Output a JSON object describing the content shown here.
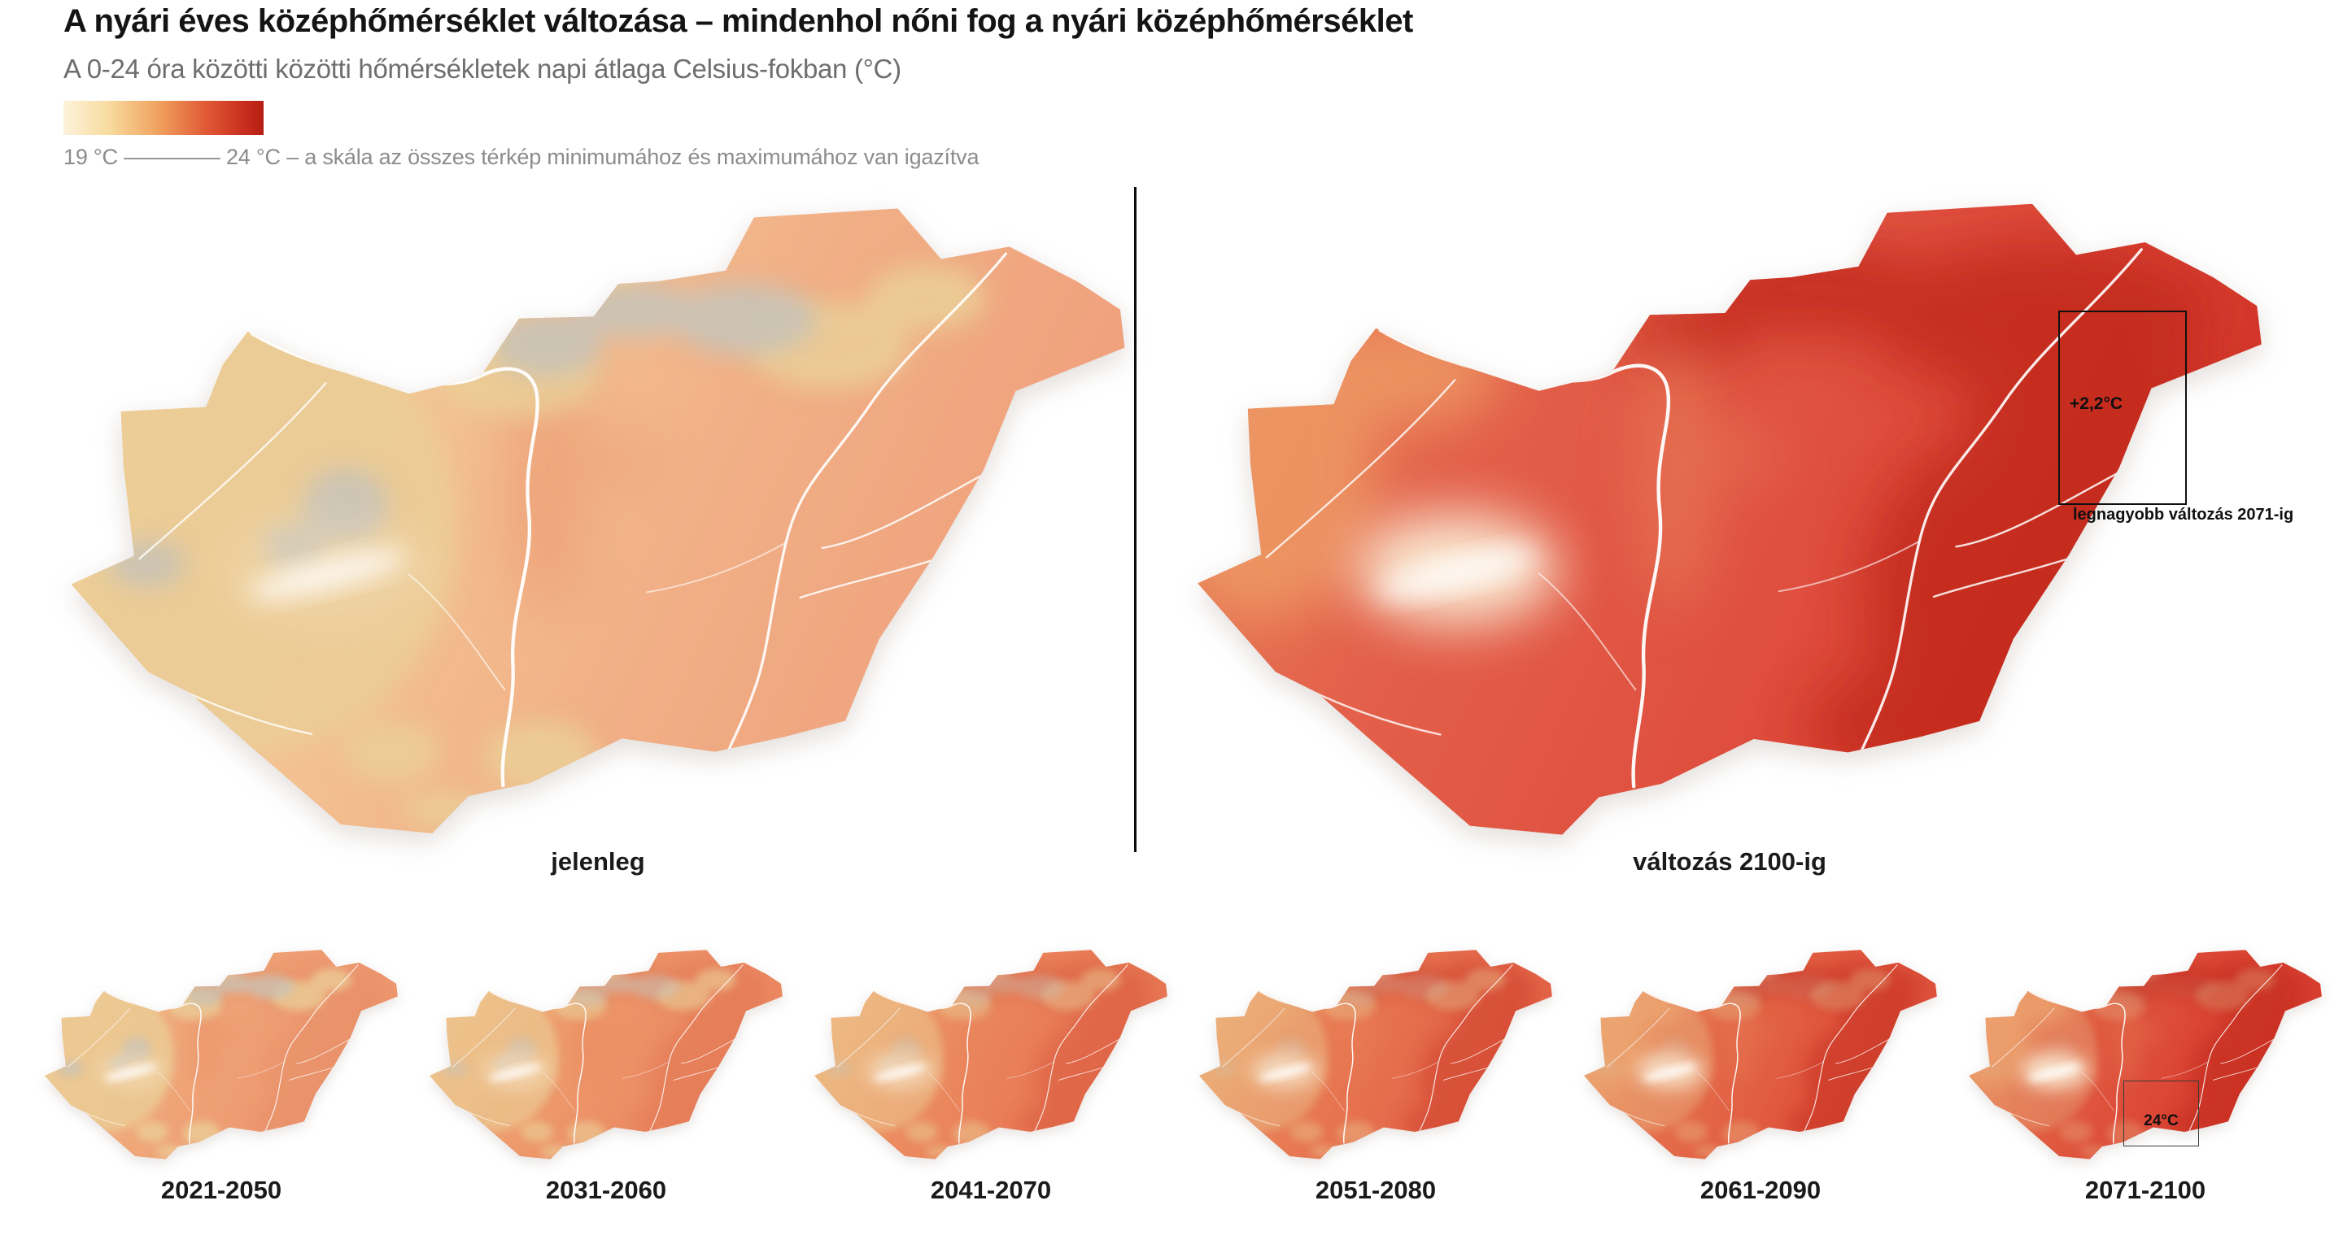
{
  "header": {
    "title": "A nyári éves középhőmérséklet változása – mindenhol nőni fog a nyári középhőmérséklet",
    "subtitle": "A 0-24 óra közötti közötti hőmérsékletek napi átlaga Celsius-fokban (°C)",
    "legend": {
      "min_label": "19 °C",
      "max_label": "24 °C",
      "caption": "19 °C –––––––– 24 °C – a skála az összes térkép minimumához és maximumához van igazítva",
      "gradient_colors": [
        "#FDF3DC",
        "#F8DCA0",
        "#F0A05D",
        "#E05734",
        "#C62A1B",
        "#B51F13"
      ]
    }
  },
  "maps": {
    "current": {
      "label": "jelenleg"
    },
    "change": {
      "label": "változás 2100-ig",
      "annotation_value": "+2,2°C",
      "annotation_caption": "legnagyobb változás 2071-ig"
    }
  },
  "small_maps": [
    {
      "label": "2021-2050"
    },
    {
      "label": "2031-2060"
    },
    {
      "label": "2041-2070"
    },
    {
      "label": "2051-2080"
    },
    {
      "label": "2061-2090"
    },
    {
      "label": "2071-2100",
      "annotation_value": "24°C"
    }
  ],
  "map_styles": {
    "current": {
      "stops": [
        "#F7DCA8",
        "#F4C795",
        "#F1AF86",
        "#EF9F7B"
      ],
      "tan": 0.9,
      "gray": 0.95,
      "dark": 0,
      "west": 0,
      "central": 0.35,
      "halo": 0.25
    },
    "change": {
      "stops": [
        "#EA8D60",
        "#E3604A",
        "#DF4E3E",
        "#D23428"
      ],
      "tan": 0,
      "gray": 0,
      "dark": 0.85,
      "west": 0.8,
      "central": 0.55,
      "halo": 0.95
    },
    "p2021": {
      "stops": [
        "#F5CE97",
        "#F0AD7D",
        "#EE9D73",
        "#EC946D"
      ],
      "tan": 0.8,
      "gray": 0.75,
      "dark": 0.05,
      "west": 0.15,
      "central": 0.3,
      "halo": 0.35
    },
    "p2031": {
      "stops": [
        "#F4C48C",
        "#EEA06F",
        "#EC8F66",
        "#EA8660"
      ],
      "tan": 0.65,
      "gray": 0.55,
      "dark": 0.12,
      "west": 0.2,
      "central": 0.3,
      "halo": 0.45
    },
    "p2041": {
      "stops": [
        "#F2B880",
        "#EC9263",
        "#E97E58",
        "#E77552"
      ],
      "tan": 0.5,
      "gray": 0.4,
      "dark": 0.22,
      "west": 0.3,
      "central": 0.3,
      "halo": 0.55
    },
    "p2051": {
      "stops": [
        "#F0AB71",
        "#E98257",
        "#E56C4C",
        "#E36247"
      ],
      "tan": 0.4,
      "gray": 0.25,
      "dark": 0.35,
      "west": 0.4,
      "central": 0.3,
      "halo": 0.65
    },
    "p2061": {
      "stops": [
        "#EF9E63",
        "#E5734E",
        "#E15A40",
        "#DE503B"
      ],
      "tan": 0.32,
      "gray": 0.15,
      "dark": 0.5,
      "west": 0.5,
      "central": 0.3,
      "halo": 0.75
    },
    "p2071": {
      "stops": [
        "#EC9157",
        "#E16245",
        "#DC4736",
        "#D73D2F"
      ],
      "tan": 0.28,
      "gray": 0.08,
      "dark": 0.62,
      "west": 0.6,
      "central": 0.3,
      "halo": 0.85
    }
  },
  "overlay_colors": {
    "mountain_gray": "#C9C3B6",
    "mountain_tan": "#EBCD96",
    "dark_red": "#C22A1E",
    "west_light_orange": "#EE9C66",
    "central_light": "#E8805C",
    "balaton_halo": "#FBEFD8",
    "lake_white": "#FFFFFF",
    "river_white": "#FFFFFF"
  }
}
